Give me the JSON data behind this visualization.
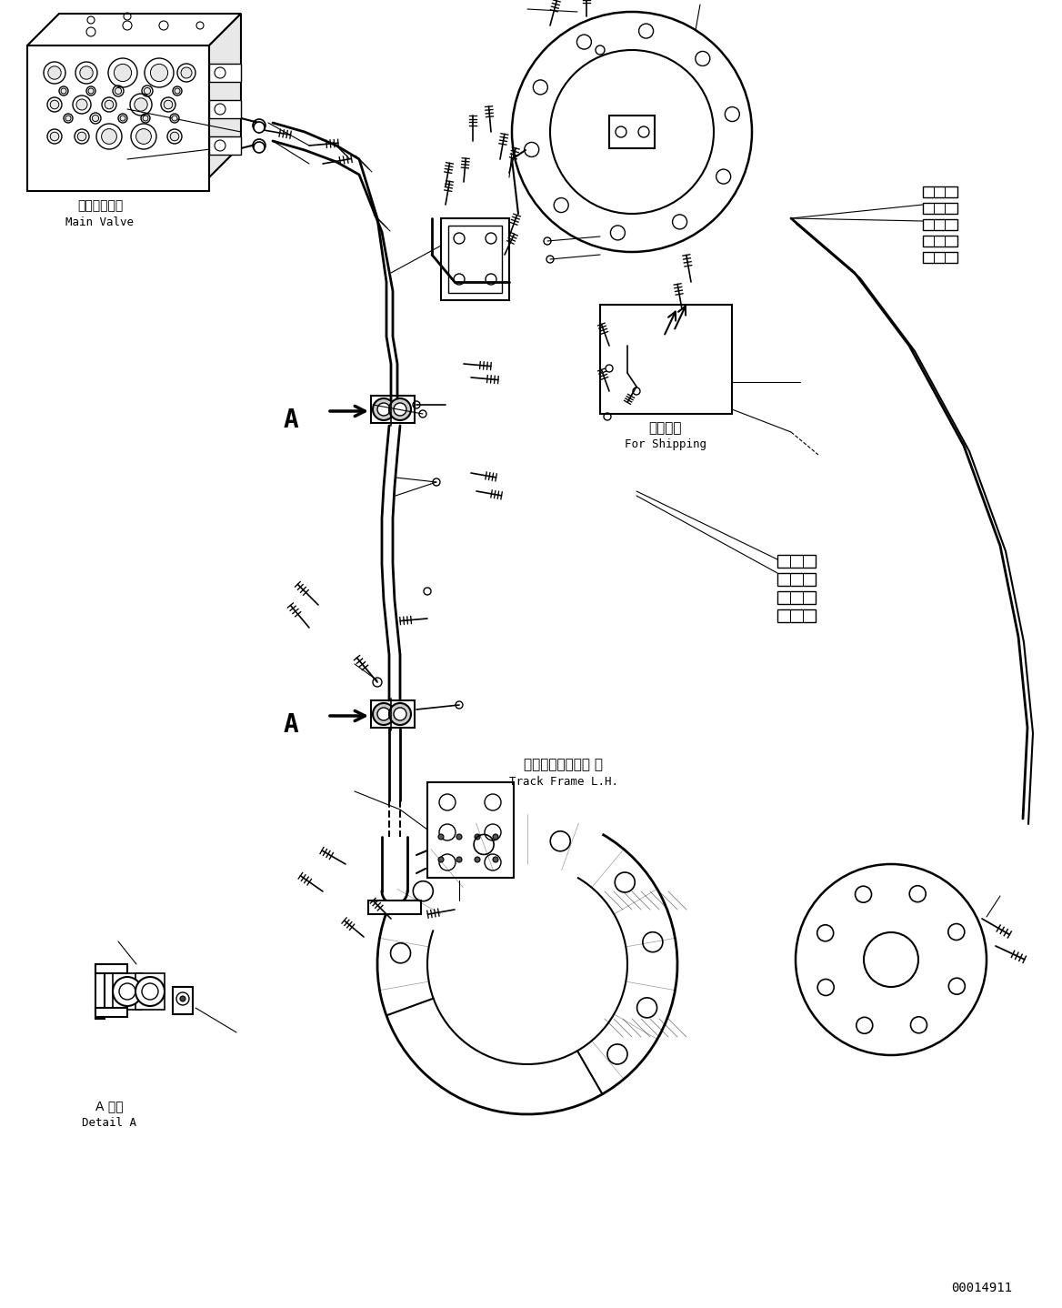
{
  "bg_color": "#ffffff",
  "line_color": "#000000",
  "fig_width": 11.68,
  "fig_height": 14.38,
  "dpi": 100,
  "part_number": "00014911",
  "labels": {
    "main_valve_jp": "メインバルブ",
    "main_valve_en": "Main Valve",
    "detail_a_jp": "A 詳細",
    "detail_a_en": "Detail A",
    "for_shipping_jp": "運搬部品",
    "for_shipping_en": "For Shipping",
    "track_frame_jp": "トラックフレーム 左",
    "track_frame_en": "Track Frame L.H."
  }
}
